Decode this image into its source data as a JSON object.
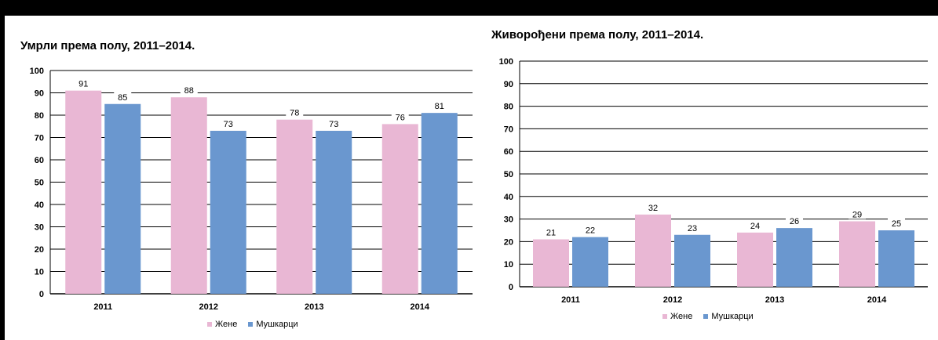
{
  "legend": {
    "women": "Жене",
    "men": "Мушкарци"
  },
  "colors": {
    "women": "#E9B7D4",
    "men": "#6A97CF",
    "grid": "#000000"
  },
  "chart_data": [
    {
      "type": "bar",
      "title": "Умрли према полу, 2011–2014.",
      "categories": [
        "2011",
        "2012",
        "2013",
        "2014"
      ],
      "series": [
        {
          "name": "Жене",
          "values": [
            91,
            88,
            78,
            76
          ]
        },
        {
          "name": "Мушкарци",
          "values": [
            85,
            73,
            73,
            81
          ]
        }
      ],
      "ylim": [
        0,
        100
      ],
      "yticks": [
        0,
        10,
        20,
        30,
        40,
        50,
        60,
        70,
        80,
        90,
        100
      ],
      "grid": true,
      "legend_position": "bottom"
    },
    {
      "type": "bar",
      "title": "Живорођени према полу, 2011–2014.",
      "categories": [
        "2011",
        "2012",
        "2013",
        "2014"
      ],
      "series": [
        {
          "name": "Жене",
          "values": [
            21,
            32,
            24,
            29
          ]
        },
        {
          "name": "Мушкарци",
          "values": [
            22,
            23,
            26,
            25
          ]
        }
      ],
      "ylim": [
        0,
        100
      ],
      "yticks": [
        0,
        10,
        20,
        30,
        40,
        50,
        60,
        70,
        80,
        90,
        100
      ],
      "grid": true,
      "legend_position": "bottom"
    }
  ]
}
